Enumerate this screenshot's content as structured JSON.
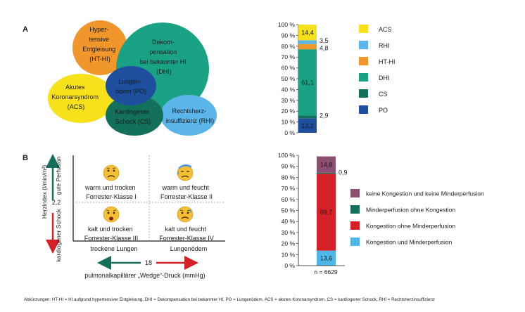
{
  "panel_a": {
    "label": "A",
    "bubbles": {
      "hthi": [
        "Hyper-",
        "tensive",
        "Entgleisung",
        "(HT-HI)"
      ],
      "dhi": [
        "Dekom-",
        "pensation",
        "bei bekannter HI",
        "(DHI)"
      ],
      "acs": [
        "Akutes",
        "Koronarsyndrom",
        "(ACS)"
      ],
      "po": [
        "Lungen-",
        "ödem (PO)"
      ],
      "cs": [
        "Kardiogener",
        "Schock (CS)"
      ],
      "rhi": [
        "Rechtsherz-",
        "insuffizienz (RHI)"
      ]
    }
  },
  "panel_b": {
    "label": "B",
    "y_axis_label": "Herzindex (l/min/m²)",
    "y_top_label": "gute Perfusion",
    "y_bottom_label": "kardiogener Schock",
    "y_threshold": "2,2",
    "x_left_label": "trockene Lungen",
    "x_right_label": "Lungenödem",
    "x_threshold": "18",
    "x_axis_label": "pulmonalkapillärer „Wedge“-Druck (mmHg)",
    "quadrants": {
      "q1": [
        "warm und trocken",
        "Forrester-Klasse I"
      ],
      "q2": [
        "warm und feucht",
        "Forrester-Klasse II"
      ],
      "q3": [
        "kalt und trocken",
        "Forrester-Klasse III"
      ],
      "q4": [
        "kalt und feucht",
        "Forrester-Klasse IV"
      ]
    }
  },
  "footnote": "Abkürzungen: HT-HI = HI aufgrund hypertensiver Entgleisung, DHI = Dekompensation bei bekannter HI, PO = Lungenödem, ACS = akutes Koronarsyndrom, CS = kardiogener Schock, RHI = Rechtsherzinsuffizienz",
  "chart_data": [
    {
      "type": "bar",
      "stacked": true,
      "ylim": [
        0,
        100
      ],
      "y_ticks": [
        "0 %",
        "10 %",
        "20 %",
        "30 %",
        "40 %",
        "50 %",
        "60 %",
        "70 %",
        "80 %",
        "90 %",
        "100 %"
      ],
      "categories": [
        ""
      ],
      "series": [
        {
          "name": "PO",
          "values": [
            13.2
          ],
          "label": "13,2",
          "color": "#1d4f9e"
        },
        {
          "name": "CS",
          "values": [
            2.9
          ],
          "label": "2,9",
          "color": "#13705a"
        },
        {
          "name": "DHI",
          "values": [
            61.1
          ],
          "label": "61,1",
          "color": "#1aa284"
        },
        {
          "name": "HT-HI",
          "values": [
            4.8
          ],
          "label": "4,8",
          "color": "#f0962b"
        },
        {
          "name": "RHI",
          "values": [
            3.5
          ],
          "label": "3,5",
          "color": "#5bb5e8"
        },
        {
          "name": "ACS",
          "values": [
            14.4
          ],
          "label": "14,4",
          "color": "#f7e11b"
        }
      ],
      "legend": [
        "ACS",
        "RHI",
        "HT-HI",
        "DHI",
        "CS",
        "PO"
      ]
    },
    {
      "type": "bar",
      "stacked": true,
      "ylim": [
        0,
        100
      ],
      "y_ticks": [
        "0 %",
        "10 %",
        "20 %",
        "30 %",
        "40 %",
        "50 %",
        "60 %",
        "70 %",
        "80 %",
        "90 %",
        "100 %"
      ],
      "categories": [
        "n = 6629"
      ],
      "series": [
        {
          "name": "Kongestion und Minderperfusion",
          "values": [
            13.6
          ],
          "label": "13,6",
          "color": "#4db8e8"
        },
        {
          "name": "Kongestion ohne Minderperfusion",
          "values": [
            69.7
          ],
          "label": "69,7",
          "color": "#d52027"
        },
        {
          "name": "Minderperfusion ohne Kongestion",
          "values": [
            0.9
          ],
          "label": "0,9",
          "color": "#13705a"
        },
        {
          "name": "keine Kongestion und keine Minderperfusion",
          "values": [
            14.8
          ],
          "label": "14,8",
          "color": "#8c4f72"
        }
      ],
      "legend": [
        "keine Kongestion und keine Minderperfusion",
        "Minderperfusion ohne Kongestion",
        "Kongestion ohne Minderperfusion",
        "Kongestion und Minderperfusion"
      ]
    }
  ]
}
